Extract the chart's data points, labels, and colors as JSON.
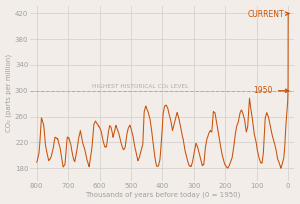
{
  "title": "",
  "xlabel": "Thousands of years before today (0 = 1950)",
  "ylabel": "CO₂ (parts per million)",
  "xlim": [
    820,
    -20
  ],
  "ylim": [
    160,
    432
  ],
  "yticks": [
    180,
    220,
    260,
    300,
    340,
    380,
    420
  ],
  "xticks": [
    800,
    700,
    600,
    500,
    400,
    300,
    200,
    100,
    0
  ],
  "line_color": "#c8520a",
  "annotation_color": "#c8520a",
  "grid_color": "#d0ccc8",
  "bg_color": "#f2ede8",
  "historical_level": 300,
  "historical_label": "HIGHEST HISTORICAL CO₂ LEVEL",
  "current_label": "CURRENT",
  "year1950_label": "1950",
  "label_color": "#b0aca8",
  "dashed_color": "#b0aca8",
  "tick_color": "#a0a0a0",
  "label_fs": 5.0,
  "annot_fs": 5.5,
  "hist_fs": 4.2
}
